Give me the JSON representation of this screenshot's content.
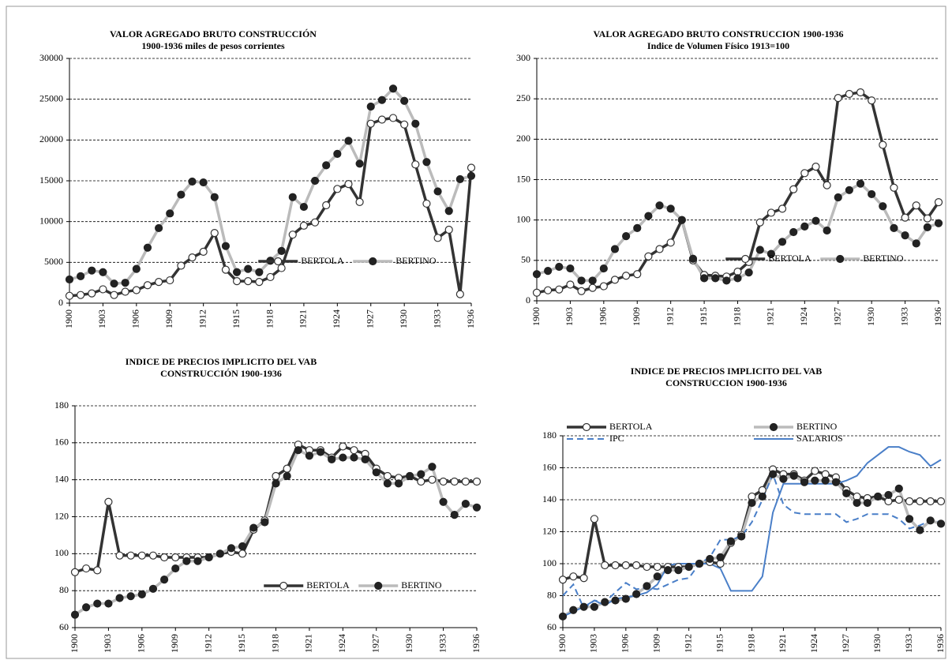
{
  "chart_data": [
    {
      "type": "line",
      "title": "VALOR AGREGADO BRUTO CONSTRUCCIÓN",
      "subtitle": "1900-1936 miles de pesos corrientes",
      "x": [
        1900,
        1901,
        1902,
        1903,
        1904,
        1905,
        1906,
        1907,
        1908,
        1909,
        1910,
        1911,
        1912,
        1913,
        1914,
        1915,
        1916,
        1917,
        1918,
        1919,
        1920,
        1921,
        1922,
        1923,
        1924,
        1925,
        1926,
        1927,
        1928,
        1929,
        1930,
        1931,
        1932,
        1933,
        1934,
        1935,
        1936
      ],
      "xlim": [
        1900,
        1936
      ],
      "xticks": [
        1900,
        1903,
        1906,
        1909,
        1912,
        1915,
        1918,
        1921,
        1924,
        1927,
        1930,
        1933,
        1936
      ],
      "ylim": [
        0,
        30000
      ],
      "yticks": [
        0,
        5000,
        10000,
        15000,
        20000,
        25000,
        30000
      ],
      "grid": true,
      "legend": "bottom",
      "series": [
        {
          "name": "BERTOLA",
          "color": "#333333",
          "marker": "open",
          "marker_color": "#333333",
          "line_style": "solid",
          "values": [
            900,
            1000,
            1200,
            1700,
            1000,
            1400,
            1600,
            2200,
            2600,
            2800,
            4600,
            5600,
            6300,
            8600,
            4100,
            2700,
            2700,
            2600,
            3200,
            4300,
            8400,
            9500,
            9900,
            12000,
            14000,
            14600,
            12400,
            22000,
            22500,
            22700,
            21900,
            17000,
            12200,
            8000,
            9000,
            1100,
            16600
          ]
        },
        {
          "name": "BERTINO",
          "color": "#bbbbbb",
          "marker": "filled",
          "marker_color": "#222222",
          "line_style": "solid",
          "values": [
            2900,
            3300,
            4000,
            3800,
            2400,
            2500,
            4200,
            6800,
            9200,
            11000,
            13300,
            14900,
            14800,
            13000,
            7000,
            3800,
            4200,
            3800,
            5200,
            6400,
            13000,
            11800,
            15000,
            16900,
            18300,
            19900,
            17100,
            24100,
            24900,
            26300,
            24800,
            22000,
            17300,
            13700,
            11300,
            15200,
            15600
          ]
        }
      ]
    },
    {
      "type": "line",
      "title": "VALOR AGREGADO BRUTO CONSTRUCCION 1900-1936",
      "subtitle": "Indice de Volumen Físico 1913=100",
      "x": [
        1900,
        1901,
        1902,
        1903,
        1904,
        1905,
        1906,
        1907,
        1908,
        1909,
        1910,
        1911,
        1912,
        1913,
        1914,
        1915,
        1916,
        1917,
        1918,
        1919,
        1920,
        1921,
        1922,
        1923,
        1924,
        1925,
        1926,
        1927,
        1928,
        1929,
        1930,
        1931,
        1932,
        1933,
        1934,
        1935,
        1936
      ],
      "xlim": [
        1900,
        1936
      ],
      "xticks": [
        1900,
        1903,
        1906,
        1909,
        1912,
        1915,
        1918,
        1921,
        1924,
        1927,
        1930,
        1933,
        1936
      ],
      "ylim": [
        0,
        300
      ],
      "yticks": [
        0,
        50,
        100,
        150,
        200,
        250,
        300
      ],
      "grid": true,
      "legend": "bottom",
      "series": [
        {
          "name": "BERTOLA",
          "color": "#333333",
          "marker": "open",
          "marker_color": "#333333",
          "line_style": "solid",
          "values": [
            10,
            13,
            14,
            20,
            12,
            16,
            18,
            26,
            31,
            33,
            55,
            64,
            72,
            100,
            50,
            32,
            31,
            30,
            36,
            48,
            97,
            109,
            114,
            138,
            158,
            166,
            143,
            251,
            256,
            258,
            248,
            193,
            140,
            103,
            118,
            102,
            122
          ]
        },
        {
          "name": "BERTINO",
          "color": "#bbbbbb",
          "marker": "filled",
          "marker_color": "#222222",
          "line_style": "solid",
          "values": [
            33,
            37,
            42,
            40,
            25,
            25,
            40,
            64,
            80,
            90,
            105,
            118,
            114,
            100,
            52,
            28,
            28,
            25,
            28,
            35,
            63,
            58,
            73,
            85,
            92,
            99,
            87,
            128,
            137,
            145,
            132,
            117,
            90,
            81,
            71,
            91,
            96
          ]
        }
      ]
    },
    {
      "type": "line",
      "title": "INDICE DE PRECIOS IMPLICITO DEL VAB",
      "subtitle": "CONSTRUCCIÓN 1900-1936",
      "x": [
        1900,
        1901,
        1902,
        1903,
        1904,
        1905,
        1906,
        1907,
        1908,
        1909,
        1910,
        1911,
        1912,
        1913,
        1914,
        1915,
        1916,
        1917,
        1918,
        1919,
        1920,
        1921,
        1922,
        1923,
        1924,
        1925,
        1926,
        1927,
        1928,
        1929,
        1930,
        1931,
        1932,
        1933,
        1934,
        1935,
        1936
      ],
      "xlim": [
        1900,
        1936
      ],
      "xticks": [
        1900,
        1903,
        1906,
        1909,
        1912,
        1915,
        1918,
        1921,
        1924,
        1927,
        1930,
        1933,
        1936
      ],
      "ylim": [
        60,
        180
      ],
      "yticks": [
        60,
        80,
        100,
        120,
        140,
        160,
        180
      ],
      "grid": true,
      "legend": "bottom",
      "series": [
        {
          "name": "BERTOLA",
          "color": "#333333",
          "marker": "open",
          "marker_color": "#333333",
          "line_style": "solid",
          "values": [
            90,
            92,
            91,
            128,
            99,
            99,
            99,
            99,
            98,
            98,
            98,
            98,
            98,
            100,
            101,
            100,
            113,
            118,
            142,
            146,
            159,
            156,
            156,
            152,
            158,
            156,
            154,
            146,
            142,
            141,
            142,
            139,
            140,
            139,
            139,
            139,
            139
          ]
        },
        {
          "name": "BERTINO",
          "color": "#bbbbbb",
          "marker": "filled",
          "marker_color": "#222222",
          "line_style": "solid",
          "values": [
            67,
            71,
            73,
            73,
            76,
            77,
            78,
            81,
            86,
            92,
            96,
            96,
            98,
            100,
            103,
            104,
            114,
            117,
            138,
            142,
            156,
            153,
            155,
            151,
            152,
            152,
            151,
            144,
            138,
            138,
            142,
            143,
            147,
            128,
            121,
            127,
            125
          ]
        }
      ]
    },
    {
      "type": "line",
      "title": "INDICE DE PRECIOS IMPLICITO DEL VAB",
      "subtitle": "CONSTRUCCION 1900-1936",
      "x": [
        1900,
        1901,
        1902,
        1903,
        1904,
        1905,
        1906,
        1907,
        1908,
        1909,
        1910,
        1911,
        1912,
        1913,
        1914,
        1915,
        1916,
        1917,
        1918,
        1919,
        1920,
        1921,
        1922,
        1923,
        1924,
        1925,
        1926,
        1927,
        1928,
        1929,
        1930,
        1931,
        1932,
        1933,
        1934,
        1935,
        1936
      ],
      "xlim": [
        1900,
        1936
      ],
      "xticks": [
        1900,
        1903,
        1906,
        1909,
        1912,
        1915,
        1918,
        1921,
        1924,
        1927,
        1930,
        1933,
        1936
      ],
      "ylim": [
        60,
        180
      ],
      "yticks": [
        60,
        80,
        100,
        120,
        140,
        160,
        180
      ],
      "grid": true,
      "legend": "top-left",
      "series": [
        {
          "name": "BERTOLA",
          "color": "#333333",
          "marker": "open",
          "marker_color": "#333333",
          "line_style": "solid",
          "values": [
            90,
            92,
            91,
            128,
            99,
            99,
            99,
            99,
            98,
            98,
            98,
            98,
            98,
            100,
            101,
            100,
            113,
            118,
            142,
            146,
            159,
            156,
            156,
            152,
            158,
            156,
            154,
            146,
            142,
            141,
            142,
            139,
            140,
            139,
            139,
            139,
            139
          ]
        },
        {
          "name": "BERTINO",
          "color": "#bbbbbb",
          "marker": "filled",
          "marker_color": "#222222",
          "line_style": "solid",
          "values": [
            67,
            71,
            73,
            73,
            76,
            77,
            78,
            81,
            86,
            92,
            96,
            96,
            98,
            100,
            103,
            104,
            114,
            117,
            138,
            142,
            156,
            153,
            155,
            151,
            152,
            152,
            151,
            144,
            138,
            138,
            142,
            143,
            147,
            128,
            121,
            127,
            125
          ]
        },
        {
          "name": "IPC",
          "color": "#4a7fc8",
          "marker": "none",
          "marker_color": "#4a7fc8",
          "line_style": "dashed",
          "values": [
            80,
            87,
            72,
            77,
            76,
            82,
            88,
            84,
            85,
            84,
            87,
            90,
            91,
            100,
            104,
            115,
            115,
            117,
            126,
            140,
            156,
            137,
            132,
            131,
            131,
            131,
            131,
            126,
            128,
            131,
            131,
            131,
            128,
            122,
            124,
            127,
            126
          ]
        },
        {
          "name": "SALARIOS",
          "color": "#4a7fc8",
          "marker": "none",
          "marker_color": "#4a7fc8",
          "line_style": "solid",
          "values": [
            67,
            70,
            73,
            77,
            74,
            78,
            79,
            80,
            82,
            87,
            99,
            100,
            100,
            100,
            100,
            97,
            83,
            83,
            83,
            92,
            132,
            150,
            150,
            150,
            150,
            150,
            150,
            152,
            155,
            163,
            168,
            173,
            173,
            170,
            168,
            161,
            165
          ]
        }
      ]
    }
  ]
}
